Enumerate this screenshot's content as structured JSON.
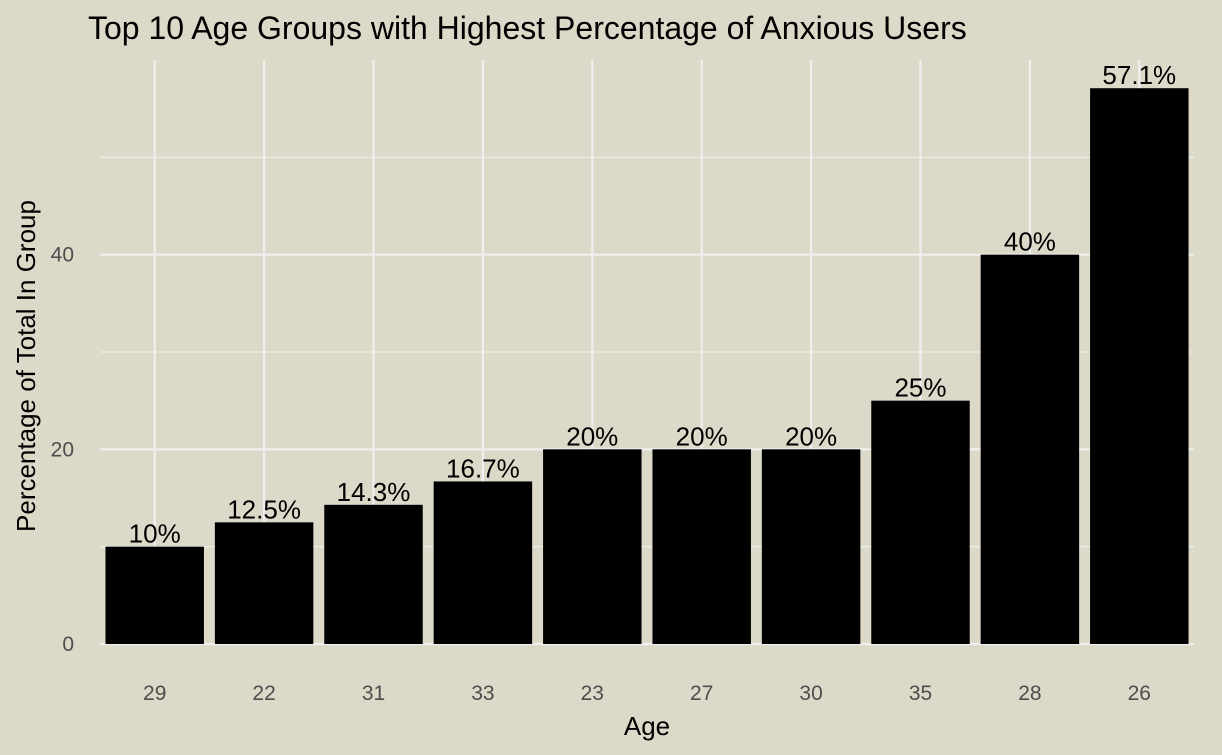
{
  "chart_data": {
    "type": "bar",
    "title": "Top 10 Age Groups with Highest Percentage of Anxious Users",
    "xlabel": "Age",
    "ylabel": "Percentage of Total In Group",
    "categories": [
      "29",
      "22",
      "31",
      "33",
      "23",
      "27",
      "30",
      "35",
      "28",
      "26"
    ],
    "values": [
      10,
      12.5,
      14.3,
      16.7,
      20,
      20,
      20,
      25,
      40,
      57.1
    ],
    "data_labels": [
      "10%",
      "12.5%",
      "14.3%",
      "16.7%",
      "20%",
      "20%",
      "20%",
      "25%",
      "40%",
      "57.1%"
    ],
    "ylim": [
      0,
      60
    ],
    "yticks": [
      0,
      20,
      40
    ],
    "yticks_minor": [
      10,
      30,
      50
    ],
    "grid": true,
    "legend": "none",
    "bar_color": "#000000",
    "background_color": "#dcd9c8",
    "grid_color": "#efefef"
  }
}
